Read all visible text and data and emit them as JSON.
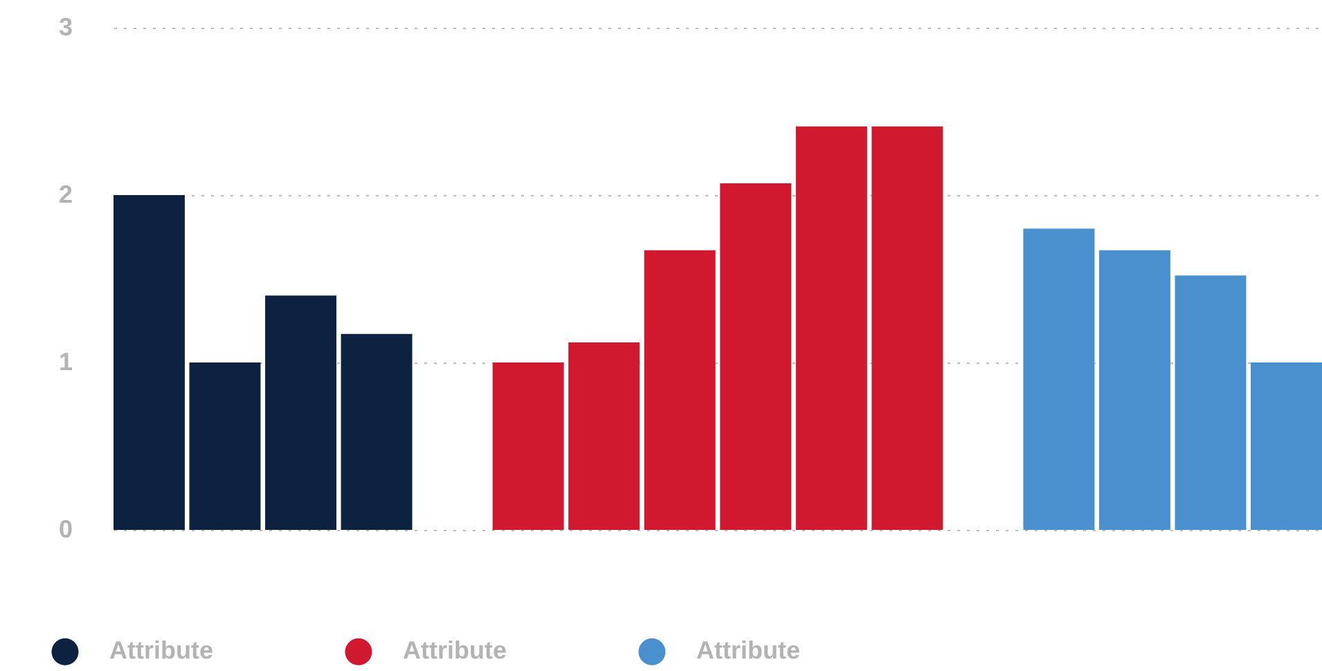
{
  "chart_data": {
    "type": "bar",
    "categories": [
      null,
      null,
      null,
      null,
      null,
      null,
      null,
      null,
      null,
      null,
      null,
      null,
      null,
      null,
      null,
      null
    ],
    "series": [
      {
        "name": "Attribute",
        "color": "#0d2240",
        "values": [
          2.0,
          1.0,
          1.4,
          1.17,
          null,
          null,
          null,
          null,
          null,
          null,
          null,
          null,
          null,
          null,
          null,
          null
        ]
      },
      {
        "name": "Attribute",
        "color": "#d0182e",
        "values": [
          null,
          null,
          null,
          null,
          null,
          1.0,
          1.12,
          1.67,
          2.07,
          2.41,
          2.41,
          null,
          null,
          null,
          null,
          null
        ]
      },
      {
        "name": "Attribute",
        "color": "#4a90cf",
        "values": [
          null,
          null,
          null,
          null,
          null,
          null,
          null,
          null,
          null,
          null,
          null,
          null,
          1.8,
          1.67,
          1.52,
          1.0
        ]
      }
    ],
    "ylim": [
      0,
      3
    ],
    "yticks": [
      0,
      1,
      2,
      3
    ],
    "grid": "y",
    "legend": "bottom left"
  }
}
